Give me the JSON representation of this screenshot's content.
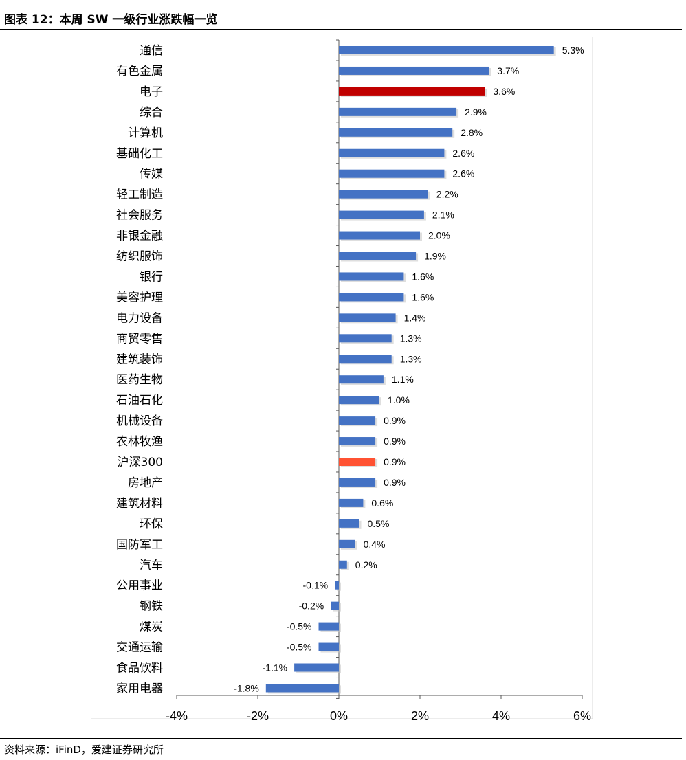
{
  "title": "图表 12：本周 SW 一级行业涨跌幅一览",
  "source": "资料来源：iFinD，爱建证券研究所",
  "colors": {
    "default": "#4472C4",
    "highlight": "#C00000",
    "benchmark": "#FF5233"
  },
  "chart_data": {
    "type": "bar",
    "orientation": "horizontal",
    "unit": "%",
    "xlim": [
      -4,
      6
    ],
    "xticks": [
      -4,
      -2,
      0,
      2,
      4,
      6
    ],
    "grid": false,
    "legend": "none",
    "categories": [
      "通信",
      "有色金属",
      "电子",
      "综合",
      "计算机",
      "基础化工",
      "传媒",
      "轻工制造",
      "社会服务",
      "非银金融",
      "纺织服饰",
      "银行",
      "美容护理",
      "电力设备",
      "商贸零售",
      "建筑装饰",
      "医药生物",
      "石油石化",
      "机械设备",
      "农林牧渔",
      "沪深300",
      "房地产",
      "建筑材料",
      "环保",
      "国防军工",
      "汽车",
      "公用事业",
      "钢铁",
      "煤炭",
      "交通运输",
      "食品饮料",
      "家用电器"
    ],
    "values": [
      5.3,
      3.7,
      3.6,
      2.9,
      2.8,
      2.6,
      2.6,
      2.2,
      2.1,
      2.0,
      1.9,
      1.6,
      1.6,
      1.4,
      1.3,
      1.3,
      1.1,
      1.0,
      0.9,
      0.9,
      0.9,
      0.9,
      0.6,
      0.5,
      0.4,
      0.2,
      -0.1,
      -0.2,
      -0.5,
      -0.5,
      -1.1,
      -1.8
    ],
    "value_labels": [
      "5.3%",
      "3.7%",
      "3.6%",
      "2.9%",
      "2.8%",
      "2.6%",
      "2.6%",
      "2.2%",
      "2.1%",
      "2.0%",
      "1.9%",
      "1.6%",
      "1.6%",
      "1.4%",
      "1.3%",
      "1.3%",
      "1.1%",
      "1.0%",
      "0.9%",
      "0.9%",
      "0.9%",
      "0.9%",
      "0.6%",
      "0.5%",
      "0.4%",
      "0.2%",
      "-0.1%",
      "-0.2%",
      "-0.5%",
      "-0.5%",
      "-1.1%",
      "-1.8%"
    ],
    "tick_labels": [
      "-4%",
      "-2%",
      "0%",
      "2%",
      "4%",
      "6%"
    ],
    "highlight_categories": {
      "电子": "highlight",
      "沪深300": "benchmark"
    }
  }
}
